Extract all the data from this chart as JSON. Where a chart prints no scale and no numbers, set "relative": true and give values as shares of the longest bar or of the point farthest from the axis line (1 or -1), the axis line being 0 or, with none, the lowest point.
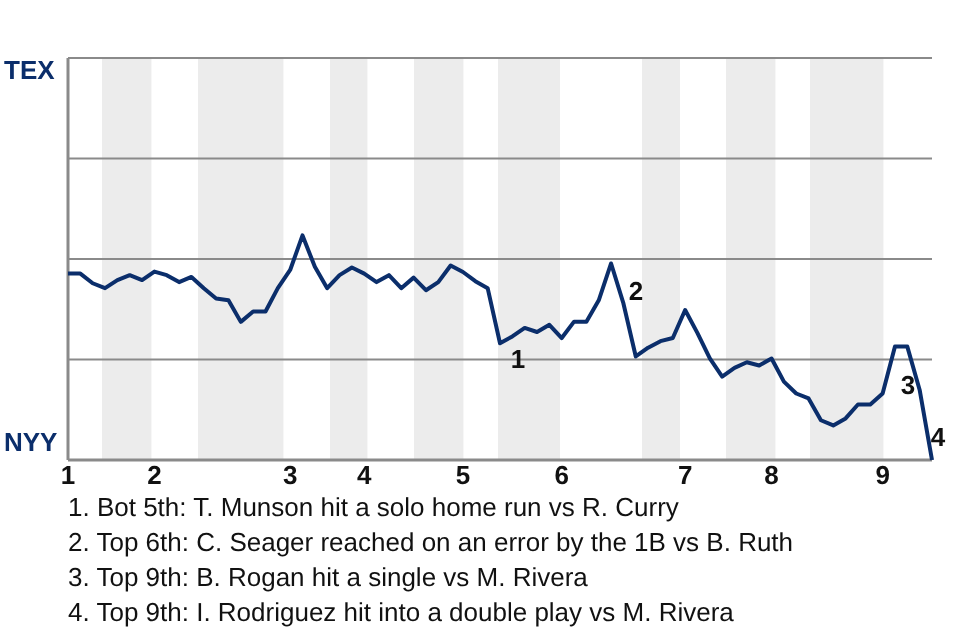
{
  "chart_data": {
    "type": "line",
    "relative": true,
    "categories": [
      "1",
      null,
      null,
      null,
      null,
      null,
      null,
      "2",
      null,
      null,
      null,
      null,
      null,
      null,
      null,
      null,
      null,
      null,
      "3",
      null,
      null,
      null,
      null,
      null,
      "4",
      null,
      null,
      null,
      null,
      null,
      null,
      null,
      "5",
      null,
      null,
      null,
      null,
      null,
      null,
      null,
      "6",
      null,
      null,
      null,
      null,
      null,
      null,
      null,
      null,
      null,
      "7",
      null,
      null,
      null,
      null,
      null,
      null,
      "8",
      null,
      null,
      null,
      null,
      null,
      null,
      null,
      null,
      "9",
      null,
      null,
      null,
      null
    ],
    "series": [
      {
        "color": "#0b2e6b",
        "values": [
          0.83,
          0.83,
          0.787,
          0.765,
          0.801,
          0.823,
          0.801,
          0.839,
          0.823,
          0.792,
          0.815,
          0.765,
          0.719,
          0.711,
          0.615,
          0.661,
          0.661,
          0.765,
          0.846,
          1,
          0.86,
          0.765,
          0.823,
          0.857,
          0.83,
          0.792,
          0.823,
          0.765,
          0.812,
          0.756,
          0.792,
          0.866,
          0.837,
          0.796,
          0.765,
          0.52,
          0.55,
          0.588,
          0.57,
          0.602,
          0.543,
          0.616,
          0.616,
          0.711,
          0.875,
          0.697,
          0.461,
          0.5,
          0.529,
          0.543,
          0.668,
          0.565,
          0.452,
          0.371,
          0.41,
          0.435,
          0.421,
          0.452,
          0.349,
          0.296,
          0.274,
          0.177,
          0.154,
          0.185,
          0.247,
          0.247,
          0.296,
          0.505,
          0.505,
          0.312,
          0
        ]
      }
    ],
    "marker": "none",
    "line_style": "solid",
    "ref_lines": [
      {
        "axis": "y",
        "value": 0.447,
        "color": "#8a8a8a"
      },
      {
        "axis": "y",
        "value": 0.895,
        "color": "#8a8a8a"
      },
      {
        "axis": "y",
        "value": 1.342,
        "color": "#8a8a8a"
      },
      {
        "axis": "y",
        "value": 1.79,
        "color": "#8a8a8a"
      }
    ],
    "annotations": [
      "TEX",
      "NYY",
      "1",
      "2",
      "3",
      "4",
      "1. Bot 5th: T. Munson hit a solo home run vs R. Curry",
      "2. Top 6th: C. Seager reached on an error by the 1B vs B. Ruth",
      "3. Top 9th: B. Rogan hit a single vs M. Rivera",
      "4. Top 9th: I. Rodriguez hit into a double play vs M. Rivera"
    ]
  }
}
